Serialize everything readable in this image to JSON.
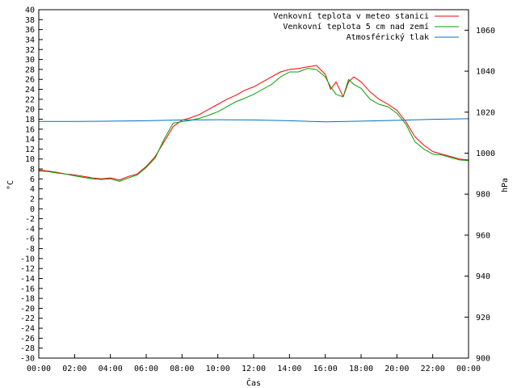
{
  "chart_data": {
    "type": "line",
    "xlabel": "Čas",
    "ylabel": "°C",
    "y2label": "hPa",
    "xlim": [
      0,
      24
    ],
    "ylim": [
      -30,
      40
    ],
    "y2lim": [
      900,
      1070
    ],
    "x_ticks": [
      "00:00",
      "02:00",
      "04:00",
      "06:00",
      "08:00",
      "10:00",
      "12:00",
      "14:00",
      "16:00",
      "18:00",
      "20:00",
      "22:00",
      "00:00"
    ],
    "y_ticks": [
      -30,
      -28,
      -26,
      -24,
      -22,
      -20,
      -18,
      -16,
      -14,
      -12,
      -10,
      -8,
      -6,
      -4,
      -2,
      0,
      2,
      4,
      6,
      8,
      10,
      12,
      14,
      16,
      18,
      20,
      22,
      24,
      26,
      28,
      30,
      32,
      34,
      36,
      38,
      40
    ],
    "y2_ticks": [
      900,
      920,
      940,
      960,
      980,
      1000,
      1020,
      1040,
      1060
    ],
    "legend_position": "top-right",
    "series": [
      {
        "name": "Venkovní teplota v meteo stanici",
        "color": "#ff0000",
        "axis": "y",
        "points": [
          [
            0,
            7.8
          ],
          [
            0.5,
            7.6
          ],
          [
            1,
            7.3
          ],
          [
            1.5,
            7.0
          ],
          [
            2,
            6.8
          ],
          [
            2.5,
            6.5
          ],
          [
            3,
            6.2
          ],
          [
            3.5,
            6.0
          ],
          [
            4,
            6.2
          ],
          [
            4.5,
            5.8
          ],
          [
            5,
            6.5
          ],
          [
            5.5,
            7.0
          ],
          [
            6,
            8.5
          ],
          [
            6.5,
            10.5
          ],
          [
            7,
            13.5
          ],
          [
            7.5,
            16.5
          ],
          [
            8,
            17.8
          ],
          [
            8.5,
            18.3
          ],
          [
            9,
            19.0
          ],
          [
            9.5,
            20.0
          ],
          [
            10,
            21.0
          ],
          [
            10.5,
            22.0
          ],
          [
            11,
            22.8
          ],
          [
            11.5,
            23.8
          ],
          [
            12,
            24.5
          ],
          [
            12.5,
            25.5
          ],
          [
            13,
            26.5
          ],
          [
            13.5,
            27.5
          ],
          [
            14,
            28.0
          ],
          [
            14.5,
            28.2
          ],
          [
            15,
            28.5
          ],
          [
            15.5,
            28.8
          ],
          [
            16,
            27.0
          ],
          [
            16.3,
            24.0
          ],
          [
            16.6,
            25.5
          ],
          [
            17,
            22.5
          ],
          [
            17.3,
            25.5
          ],
          [
            17.6,
            26.5
          ],
          [
            18,
            25.5
          ],
          [
            18.5,
            23.5
          ],
          [
            19,
            22.0
          ],
          [
            19.5,
            21.0
          ],
          [
            20,
            19.8
          ],
          [
            20.5,
            17.5
          ],
          [
            21,
            14.5
          ],
          [
            21.5,
            12.8
          ],
          [
            22,
            11.5
          ],
          [
            22.5,
            11.0
          ],
          [
            23,
            10.5
          ],
          [
            23.5,
            10.0
          ],
          [
            24,
            9.8
          ]
        ]
      },
      {
        "name": "Venkovní teplota 5 cm nad zemí",
        "color": "#00a000",
        "axis": "y",
        "points": [
          [
            0,
            7.6
          ],
          [
            0.5,
            7.5
          ],
          [
            1,
            7.2
          ],
          [
            1.5,
            7.0
          ],
          [
            2,
            6.6
          ],
          [
            2.5,
            6.3
          ],
          [
            3,
            6.0
          ],
          [
            3.5,
            5.9
          ],
          [
            4,
            6.0
          ],
          [
            4.5,
            5.5
          ],
          [
            5,
            6.2
          ],
          [
            5.5,
            6.8
          ],
          [
            6,
            8.3
          ],
          [
            6.5,
            10.2
          ],
          [
            7,
            14.0
          ],
          [
            7.5,
            17.2
          ],
          [
            8,
            17.5
          ],
          [
            8.5,
            17.8
          ],
          [
            9,
            18.2
          ],
          [
            9.5,
            18.8
          ],
          [
            10,
            19.5
          ],
          [
            10.5,
            20.5
          ],
          [
            11,
            21.5
          ],
          [
            11.5,
            22.2
          ],
          [
            12,
            23.0
          ],
          [
            12.5,
            24.0
          ],
          [
            13,
            25.0
          ],
          [
            13.5,
            26.5
          ],
          [
            14,
            27.5
          ],
          [
            14.5,
            27.5
          ],
          [
            15,
            28.2
          ],
          [
            15.5,
            28.0
          ],
          [
            16,
            26.5
          ],
          [
            16.3,
            24.5
          ],
          [
            16.6,
            23.0
          ],
          [
            17,
            22.5
          ],
          [
            17.3,
            26.0
          ],
          [
            17.6,
            25.0
          ],
          [
            18,
            24.2
          ],
          [
            18.5,
            22.0
          ],
          [
            19,
            21.0
          ],
          [
            19.5,
            20.5
          ],
          [
            20,
            19.2
          ],
          [
            20.5,
            17.0
          ],
          [
            21,
            13.5
          ],
          [
            21.5,
            12.0
          ],
          [
            22,
            11.0
          ],
          [
            22.5,
            10.8
          ],
          [
            23,
            10.3
          ],
          [
            23.5,
            9.8
          ],
          [
            24,
            9.7
          ]
        ]
      },
      {
        "name": "Atmosférický tlak",
        "color": "#0070c0",
        "axis": "y2",
        "points": [
          [
            0,
            1015.5
          ],
          [
            2,
            1015.5
          ],
          [
            4,
            1015.6
          ],
          [
            6,
            1015.8
          ],
          [
            7,
            1016.0
          ],
          [
            8,
            1016.2
          ],
          [
            10,
            1016.3
          ],
          [
            12,
            1016.2
          ],
          [
            14,
            1015.8
          ],
          [
            16,
            1015.3
          ],
          [
            18,
            1015.6
          ],
          [
            20,
            1016.0
          ],
          [
            22,
            1016.5
          ],
          [
            24,
            1016.8
          ]
        ]
      }
    ]
  }
}
